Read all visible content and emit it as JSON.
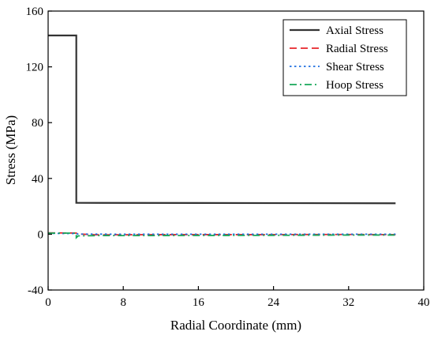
{
  "chart_data": {
    "type": "line",
    "title": "",
    "xlabel": "Radial Coordinate (mm)",
    "ylabel": "Stress (MPa)",
    "xlim": [
      0,
      40
    ],
    "ylim": [
      -40,
      160
    ],
    "xticks": [
      0,
      8,
      16,
      24,
      32,
      40
    ],
    "yticks": [
      -40,
      0,
      40,
      80,
      120,
      160
    ],
    "grid": false,
    "legend_position": "top-right",
    "series": [
      {
        "name": "Axial Stress",
        "color": "#333333",
        "dash": "solid",
        "x": [
          0,
          3.0,
          3.0,
          37
        ],
        "y": [
          142.5,
          142.5,
          22.5,
          22.2
        ]
      },
      {
        "name": "Radial Stress",
        "color": "#e8262a",
        "dash": "dashed",
        "x": [
          0,
          3.0,
          3.2,
          5,
          8,
          12,
          16,
          20,
          24,
          28,
          32,
          37
        ],
        "y": [
          1.0,
          0.8,
          0.2,
          -0.4,
          -0.4,
          -0.3,
          -0.3,
          -0.3,
          -0.3,
          -0.2,
          -0.2,
          -0.3
        ]
      },
      {
        "name": "Shear Stress",
        "color": "#1f6fe0",
        "dash": "dotted",
        "x": [
          0,
          3.0,
          3.2,
          8,
          16,
          24,
          32,
          37
        ],
        "y": [
          0.6,
          0.5,
          0.1,
          0.0,
          0.0,
          0.0,
          0.0,
          0.0
        ]
      },
      {
        "name": "Hoop Stress",
        "color": "#18a85a",
        "dash": "dashdot",
        "x": [
          0,
          2.8,
          3.0,
          3.0,
          3.2,
          5,
          8,
          16,
          24,
          32,
          37
        ],
        "y": [
          0.8,
          0.8,
          0.8,
          -2.5,
          -1.2,
          -1.0,
          -1.0,
          -0.9,
          -0.8,
          -0.6,
          -0.6
        ]
      }
    ]
  }
}
